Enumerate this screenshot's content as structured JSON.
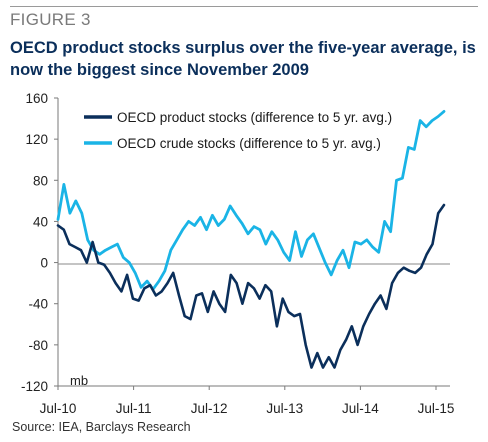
{
  "figure_label": "FIGURE 3",
  "title_line1": "OECD product stocks surplus over the five-year average, is",
  "title_line2": "now the biggest since November 2009",
  "source": "Source: IEA, Barclays Research",
  "chart_data": {
    "type": "line",
    "title": "OECD product stocks surplus over the five-year average, is now the biggest since November 2009",
    "ylabel": "mb",
    "xlabel": "",
    "ylim": [
      -120,
      160
    ],
    "yticks": [
      160,
      120,
      80,
      40,
      0,
      -40,
      -80,
      -120
    ],
    "ytick_labels": [
      "160",
      "120",
      "80",
      "40",
      "0",
      "-40",
      "-80",
      "-120"
    ],
    "xtick_labels": [
      "Jul-10",
      "Jul-11",
      "Jul-12",
      "Jul-13",
      "Jul-14",
      "Jul-15"
    ],
    "x_start": "Jul-10",
    "x_end": "Jul-15",
    "grid": false,
    "legend_position": "top",
    "series": [
      {
        "name": "OECD product stocks (difference to 5 yr. avg.)",
        "color": "#0b2f5b",
        "values": [
          36,
          32,
          18,
          15,
          12,
          0,
          20,
          0,
          -2,
          -10,
          -20,
          -28,
          -12,
          -35,
          -37,
          -25,
          -22,
          -32,
          -28,
          -20,
          -10,
          -32,
          -52,
          -55,
          -32,
          -30,
          -48,
          -28,
          -40,
          -48,
          -12,
          -20,
          -40,
          -20,
          -25,
          -35,
          -22,
          -28,
          -62,
          -35,
          -48,
          -52,
          -50,
          -80,
          -102,
          -88,
          -102,
          -92,
          -102,
          -85,
          -75,
          -62,
          -80,
          -62,
          -50,
          -40,
          -32,
          -45,
          -20,
          -10,
          -5,
          -8,
          -10,
          -5,
          8,
          18,
          48,
          56
        ]
      },
      {
        "name": "OECD crude stocks (difference to 5 yr. avg.)",
        "color": "#1ab4e6",
        "values": [
          42,
          76,
          48,
          60,
          48,
          22,
          12,
          8,
          12,
          15,
          18,
          5,
          0,
          -10,
          -24,
          -18,
          -26,
          -18,
          -8,
          12,
          22,
          32,
          40,
          36,
          44,
          32,
          46,
          36,
          42,
          55,
          46,
          38,
          28,
          35,
          32,
          18,
          30,
          22,
          10,
          2,
          30,
          6,
          22,
          28,
          14,
          0,
          -12,
          2,
          12,
          -5,
          20,
          18,
          22,
          15,
          10,
          40,
          30,
          80,
          82,
          112,
          110,
          138,
          132,
          138,
          142,
          147
        ]
      }
    ]
  }
}
